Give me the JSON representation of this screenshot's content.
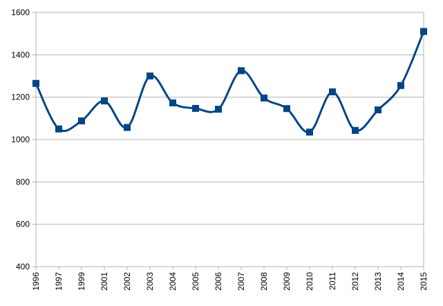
{
  "chart_data": {
    "type": "line",
    "title": "",
    "xlabel": "",
    "ylabel": "",
    "categories": [
      "1996",
      "1997",
      "1999",
      "2001",
      "2002",
      "2003",
      "2004",
      "2005",
      "2006",
      "2007",
      "2008",
      "2009",
      "2010",
      "2011",
      "2012",
      "2013",
      "2014",
      "2015"
    ],
    "series": [
      {
        "values": [
          1265,
          1050,
          1088,
          1182,
          1057,
          1300,
          1173,
          1147,
          1143,
          1325,
          1196,
          1146,
          1035,
          1225,
          1043,
          1140,
          1255,
          1510
        ]
      }
    ],
    "ylim": [
      400,
      1600
    ],
    "yticks": [
      400,
      600,
      800,
      1000,
      1200,
      1400,
      1600
    ],
    "grid": true,
    "legend": "none",
    "smooth": true,
    "marker": "square",
    "colors": {
      "line": "#004586",
      "grid": "#b3b3b3",
      "axis": "#b3b3b3"
    }
  }
}
